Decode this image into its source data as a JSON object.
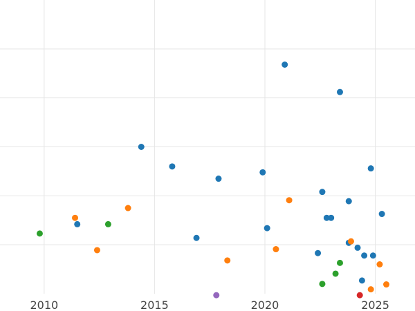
{
  "chart_data": {
    "type": "scatter",
    "title": "",
    "xlabel": "",
    "ylabel": "",
    "xlim": [
      2008,
      2026.8
    ],
    "ylim": [
      0,
      6
    ],
    "x_ticks": [
      2010,
      2015,
      2020,
      2025
    ],
    "x_tick_labels": [
      "2010",
      "2015",
      "2020",
      "2025"
    ],
    "y_gridlines": [
      1,
      2,
      3,
      4,
      5
    ],
    "grid": true,
    "legend": "none",
    "series": [
      {
        "color": "#1f77b4",
        "points": [
          {
            "x": 2011.5,
            "y": 1.42
          },
          {
            "x": 2014.4,
            "y": 3.0
          },
          {
            "x": 2015.8,
            "y": 2.6
          },
          {
            "x": 2016.9,
            "y": 1.14
          },
          {
            "x": 2017.9,
            "y": 2.35
          },
          {
            "x": 2019.9,
            "y": 2.48
          },
          {
            "x": 2020.1,
            "y": 1.34
          },
          {
            "x": 2020.9,
            "y": 4.68
          },
          {
            "x": 2022.4,
            "y": 0.83
          },
          {
            "x": 2022.6,
            "y": 2.08
          },
          {
            "x": 2022.8,
            "y": 1.55
          },
          {
            "x": 2023.0,
            "y": 1.55
          },
          {
            "x": 2023.4,
            "y": 4.12
          },
          {
            "x": 2023.8,
            "y": 1.89
          },
          {
            "x": 2023.8,
            "y": 1.04
          },
          {
            "x": 2024.2,
            "y": 0.94
          },
          {
            "x": 2024.4,
            "y": 0.27
          },
          {
            "x": 2024.5,
            "y": 0.78
          },
          {
            "x": 2024.8,
            "y": 2.56
          },
          {
            "x": 2024.9,
            "y": 0.78
          },
          {
            "x": 2025.3,
            "y": 1.63
          }
        ]
      },
      {
        "color": "#ff7f0e",
        "points": [
          {
            "x": 2011.4,
            "y": 1.55
          },
          {
            "x": 2012.4,
            "y": 0.89
          },
          {
            "x": 2013.8,
            "y": 1.75
          },
          {
            "x": 2018.3,
            "y": 0.68
          },
          {
            "x": 2020.5,
            "y": 0.91
          },
          {
            "x": 2021.1,
            "y": 1.91
          },
          {
            "x": 2023.9,
            "y": 1.07
          },
          {
            "x": 2024.8,
            "y": 0.09
          },
          {
            "x": 2025.2,
            "y": 0.6
          },
          {
            "x": 2025.5,
            "y": 0.19
          }
        ]
      },
      {
        "color": "#2ca02c",
        "points": [
          {
            "x": 2009.8,
            "y": 1.23
          },
          {
            "x": 2012.9,
            "y": 1.42
          },
          {
            "x": 2022.6,
            "y": 0.2
          },
          {
            "x": 2023.2,
            "y": 0.41
          },
          {
            "x": 2023.4,
            "y": 0.63
          }
        ]
      },
      {
        "color": "#9467bd",
        "points": [
          {
            "x": 2017.8,
            "y": -0.03
          }
        ]
      },
      {
        "color": "#d62728",
        "points": [
          {
            "x": 2024.3,
            "y": -0.03
          }
        ]
      }
    ]
  }
}
